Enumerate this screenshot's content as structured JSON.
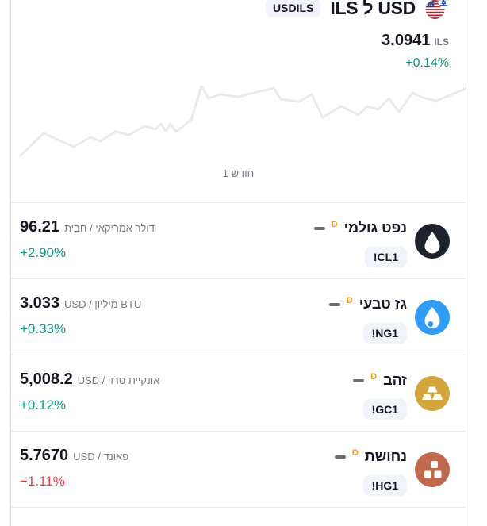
{
  "widget": {
    "symbol_badge": "USDILS",
    "title": "ILS ל USD",
    "flag_icon": "us-israel-dual-flag-icon",
    "price": "3.0941",
    "currency": "ILS",
    "change": "+0.14%",
    "change_color": "#089981",
    "range_label": "1 חודש",
    "chart": {
      "type": "line",
      "color": "#e8eaee",
      "points": [
        [
          12,
          96
        ],
        [
          41,
          68
        ],
        [
          79,
          85
        ],
        [
          100,
          73
        ],
        [
          112,
          78
        ],
        [
          132,
          66
        ],
        [
          149,
          70
        ],
        [
          168,
          59
        ],
        [
          182,
          63
        ],
        [
          189,
          56
        ],
        [
          195,
          65
        ],
        [
          201,
          56
        ],
        [
          208,
          66
        ],
        [
          227,
          51
        ],
        [
          240,
          9
        ],
        [
          249,
          24
        ],
        [
          263,
          19
        ],
        [
          286,
          22
        ],
        [
          331,
          11
        ],
        [
          340,
          25
        ],
        [
          363,
          28
        ],
        [
          379,
          19
        ],
        [
          393,
          48
        ],
        [
          416,
          34
        ],
        [
          438,
          45
        ],
        [
          449,
          34
        ],
        [
          463,
          38
        ],
        [
          476,
          24
        ],
        [
          489,
          41
        ],
        [
          506,
          17
        ],
        [
          519,
          23
        ],
        [
          536,
          27
        ],
        [
          575,
          11
        ]
      ]
    }
  },
  "rows": [
    {
      "name": "נפט גולמי",
      "marker": "D",
      "marker_color": "#ff9800",
      "status_icon": "dash-icon",
      "symbol": "!CL1",
      "icon": "oil-drop-icon",
      "icon_color": "#1e222d",
      "price": "96.21",
      "unit": "דולר אמריקאי / חבית",
      "change": "+2.90%",
      "change_color": "#089981"
    },
    {
      "name": "גז טבעי",
      "marker": "D",
      "marker_color": "#ff9800",
      "status_icon": "dash-icon",
      "symbol": "!NG1",
      "icon": "flame-icon",
      "icon_color": "#2f9df5",
      "price": "3.033",
      "unit": "USD / מיליון BTU",
      "change": "+0.33%",
      "change_color": "#089981"
    },
    {
      "name": "זהב",
      "marker": "D",
      "marker_color": "#ff9800",
      "status_icon": "dash-icon",
      "symbol": "!GC1",
      "icon": "gold-bars-icon",
      "icon_color": "#d2a63c",
      "price": "5,008.2",
      "unit": "USD / אונקיית טרוי",
      "change": "+0.12%",
      "change_color": "#089981"
    },
    {
      "name": "נחושת",
      "marker": "D",
      "marker_color": "#ff9800",
      "status_icon": "dash-icon",
      "symbol": "!HG1",
      "icon": "copper-blocks-icon",
      "icon_color": "#bf6a4e",
      "price": "5.7670",
      "unit": "USD / פאונד",
      "change": "−1.11%",
      "change_color": "#f23645"
    }
  ]
}
